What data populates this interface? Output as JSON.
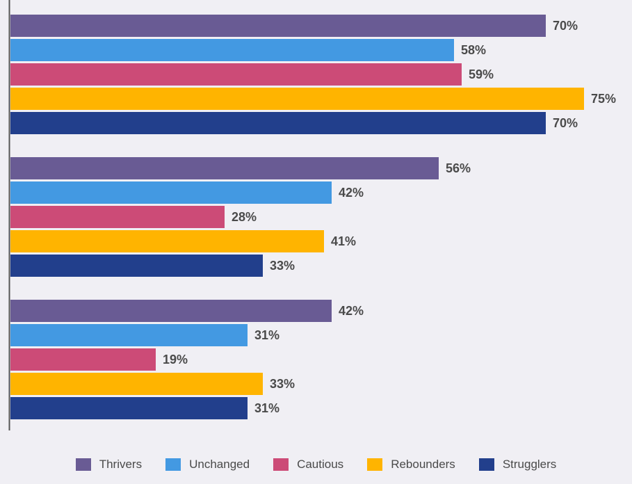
{
  "chart_data": {
    "type": "bar",
    "orientation": "horizontal",
    "groups": 3,
    "series": [
      {
        "name": "Thrivers",
        "color": "#695b94",
        "values": [
          70,
          56,
          42
        ],
        "labels": [
          "70%",
          "56%",
          "42%"
        ]
      },
      {
        "name": "Unchanged",
        "color": "#4399e2",
        "values": [
          58,
          42,
          31
        ],
        "labels": [
          "58%",
          "42%",
          "31%"
        ]
      },
      {
        "name": "Cautious",
        "color": "#cc4b77",
        "values": [
          59,
          28,
          19
        ],
        "labels": [
          "59%",
          "28%",
          "19%"
        ]
      },
      {
        "name": "Rebounders",
        "color": "#ffb400",
        "values": [
          75,
          41,
          33
        ],
        "labels": [
          "75%",
          "41%",
          "33%"
        ]
      },
      {
        "name": "Strugglers",
        "color": "#223f8c",
        "values": [
          70,
          33,
          31
        ],
        "labels": [
          "70%",
          "33%",
          "31%"
        ]
      }
    ],
    "xlim": [
      0,
      75
    ],
    "grid": false,
    "legend_position": "bottom"
  }
}
